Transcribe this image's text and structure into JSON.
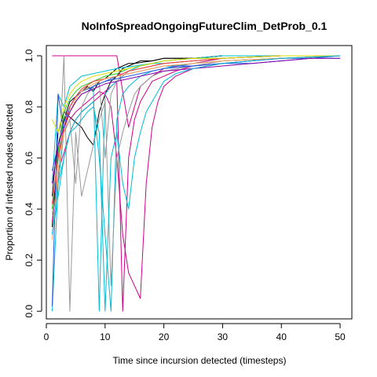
{
  "chart_data": {
    "type": "line",
    "title": "NoInfoSpreadOngoingFutureClim_DetProb_0.1",
    "xlabel": "Time since incursion detected (timesteps)",
    "ylabel": "Proportion of infested nodes detected",
    "xlim": [
      0,
      52
    ],
    "ylim": [
      -0.03,
      1.04
    ],
    "xticks": [
      0,
      10,
      20,
      30,
      40,
      50
    ],
    "yticks": [
      0.0,
      0.2,
      0.4,
      0.6,
      0.8,
      1.0
    ],
    "xtick_labels": [
      "0",
      "10",
      "20",
      "30",
      "40",
      "50"
    ],
    "ytick_labels": [
      "0.0",
      "0.2",
      "0.4",
      "0.6",
      "0.8",
      "1.0"
    ],
    "grid": false,
    "series": [
      {
        "color": "#000000",
        "x": [
          1,
          2,
          3,
          4,
          5,
          6,
          7,
          8,
          9,
          10,
          11,
          12,
          13,
          14,
          15,
          16,
          18,
          20,
          22,
          25,
          30,
          35,
          40,
          45,
          50
        ],
        "y": [
          0.33,
          0.65,
          0.75,
          0.82,
          0.84,
          0.86,
          0.88,
          0.86,
          0.9,
          0.91,
          0.93,
          0.95,
          0.96,
          0.97,
          0.97,
          0.98,
          0.98,
          0.99,
          0.99,
          0.99,
          1.0,
          1.0,
          1.0,
          1.0,
          1.0
        ]
      },
      {
        "color": "#000000",
        "x": [
          1,
          2,
          3,
          4,
          5,
          6,
          7,
          8,
          9,
          10,
          11,
          12,
          13,
          15,
          18,
          20,
          25,
          30,
          40,
          50
        ],
        "y": [
          0.45,
          0.7,
          0.78,
          0.76,
          0.74,
          0.72,
          0.68,
          0.65,
          0.78,
          0.85,
          0.9,
          0.92,
          0.95,
          0.97,
          0.98,
          0.99,
          0.99,
          1.0,
          1.0,
          1.0
        ]
      },
      {
        "color": "#cc0088",
        "x": [
          1,
          2,
          3,
          4,
          5,
          6,
          7,
          8,
          9,
          10,
          11,
          12,
          13,
          14,
          15,
          16,
          17,
          18,
          20,
          22,
          25,
          30,
          40,
          50
        ],
        "y": [
          0.35,
          0.55,
          0.62,
          0.7,
          0.75,
          0.78,
          0.8,
          0.82,
          0.84,
          0.86,
          0.88,
          0.9,
          0.0,
          0.6,
          0.75,
          0.82,
          0.86,
          0.9,
          0.92,
          0.94,
          0.96,
          0.98,
          0.99,
          1.0
        ]
      },
      {
        "color": "#cc0088",
        "x": [
          1,
          2,
          3,
          4,
          5,
          6,
          7,
          8,
          9,
          10,
          11,
          12,
          14,
          16,
          18,
          20,
          25,
          30,
          40,
          50
        ],
        "y": [
          1.0,
          1.0,
          1.0,
          1.0,
          1.0,
          1.0,
          1.0,
          1.0,
          1.0,
          1.0,
          1.0,
          1.0,
          0.72,
          0.88,
          0.92,
          0.95,
          0.97,
          0.99,
          1.0,
          1.0
        ]
      },
      {
        "color": "#cc0088",
        "x": [
          1,
          2,
          3,
          4,
          5,
          6,
          7,
          8,
          9,
          10,
          11,
          12,
          13,
          14,
          15,
          16,
          17,
          18,
          19,
          20,
          22,
          25,
          30,
          40,
          50
        ],
        "y": [
          0.4,
          0.6,
          0.7,
          0.75,
          0.78,
          0.8,
          0.82,
          0.84,
          0.86,
          0.85,
          0.8,
          0.6,
          0.3,
          0.15,
          0.1,
          0.05,
          0.5,
          0.72,
          0.82,
          0.88,
          0.92,
          0.95,
          0.97,
          0.99,
          1.0
        ]
      },
      {
        "color": "#00bcd4",
        "x": [
          1,
          2,
          3,
          4,
          5,
          6,
          7,
          8,
          9,
          10,
          11,
          12,
          13,
          14,
          15,
          16,
          18,
          20,
          25,
          30,
          40,
          50
        ],
        "y": [
          0.0,
          0.5,
          0.7,
          0.8,
          0.84,
          0.86,
          0.87,
          0.88,
          0.0,
          0.85,
          0.88,
          0.9,
          0.92,
          0.94,
          0.95,
          0.96,
          0.97,
          0.98,
          0.99,
          1.0,
          1.0,
          1.0
        ]
      },
      {
        "color": "#00bcd4",
        "x": [
          1,
          2,
          3,
          4,
          5,
          6,
          7,
          8,
          9,
          10,
          11,
          12,
          13,
          14,
          15,
          16,
          18,
          20,
          22,
          25,
          30,
          40,
          50
        ],
        "y": [
          0.3,
          0.45,
          0.6,
          0.7,
          0.75,
          0.78,
          0.8,
          0.82,
          0.6,
          0.3,
          0.0,
          0.75,
          0.85,
          0.88,
          0.9,
          0.92,
          0.94,
          0.95,
          0.96,
          0.97,
          0.98,
          0.99,
          1.0
        ]
      },
      {
        "color": "#00bcd4",
        "x": [
          1,
          2,
          3,
          4,
          5,
          6,
          8,
          10,
          12,
          15,
          18,
          20,
          25,
          30,
          40,
          50
        ],
        "y": [
          0.5,
          0.85,
          0.8,
          0.88,
          0.9,
          0.92,
          0.93,
          0.94,
          0.95,
          0.96,
          0.97,
          0.97,
          0.98,
          0.99,
          1.0,
          1.0
        ]
      },
      {
        "color": "#999999",
        "x": [
          1,
          2,
          3,
          4,
          5,
          6,
          7,
          8,
          9,
          10,
          11,
          12,
          13,
          14,
          15,
          16,
          18,
          20,
          25,
          30,
          40,
          50
        ],
        "y": [
          0.38,
          0.5,
          1.0,
          0.0,
          0.7,
          0.45,
          0.55,
          0.65,
          0.75,
          0.82,
          0.1,
          0.6,
          0.7,
          0.78,
          0.85,
          0.88,
          0.92,
          0.94,
          0.96,
          0.98,
          0.99,
          1.0
        ]
      },
      {
        "color": "#999999",
        "x": [
          1,
          2,
          3,
          4,
          5,
          6,
          7,
          8,
          9,
          10,
          11,
          12,
          14,
          16,
          18,
          20,
          25,
          30,
          40,
          50
        ],
        "y": [
          0.4,
          0.6,
          0.7,
          0.75,
          0.5,
          0.8,
          0.85,
          0.88,
          0.9,
          0.6,
          0.85,
          0.9,
          0.94,
          0.95,
          0.96,
          0.97,
          0.98,
          0.99,
          1.0,
          1.0
        ]
      },
      {
        "color": "#2255dd",
        "x": [
          1,
          2,
          3,
          4,
          5,
          6,
          7,
          8,
          9,
          10,
          12,
          14,
          16,
          18,
          20,
          25,
          30,
          35,
          40,
          45,
          50
        ],
        "y": [
          0.02,
          0.85,
          0.7,
          0.78,
          0.82,
          0.85,
          0.86,
          0.88,
          0.89,
          0.9,
          0.92,
          0.93,
          0.94,
          0.95,
          0.96,
          0.96,
          0.97,
          0.97,
          0.98,
          0.99,
          0.99
        ]
      },
      {
        "color": "#2255dd",
        "x": [
          1,
          2,
          3,
          4,
          5,
          6,
          8,
          10,
          12,
          14,
          16,
          18,
          20,
          25,
          30,
          35,
          40,
          45,
          50
        ],
        "y": [
          0.55,
          0.65,
          0.74,
          0.8,
          0.84,
          0.86,
          0.88,
          0.9,
          0.91,
          0.92,
          0.93,
          0.94,
          0.95,
          0.96,
          0.97,
          0.98,
          0.99,
          0.99,
          1.0
        ]
      },
      {
        "color": "#22cc22",
        "x": [
          1,
          2,
          3,
          4,
          5,
          6,
          8,
          10,
          12,
          14,
          16,
          18,
          20,
          25,
          30,
          40,
          50
        ],
        "y": [
          0.4,
          0.62,
          0.78,
          0.83,
          0.86,
          0.88,
          0.9,
          0.92,
          0.93,
          0.95,
          0.96,
          0.97,
          0.98,
          0.99,
          0.99,
          1.0,
          1.0
        ]
      },
      {
        "color": "#ff3333",
        "x": [
          1,
          2,
          3,
          4,
          5,
          6,
          8,
          10,
          12,
          14,
          16,
          18,
          20,
          25,
          30,
          40,
          50
        ],
        "y": [
          0.42,
          0.6,
          0.72,
          0.8,
          0.84,
          0.87,
          0.9,
          0.91,
          0.92,
          0.94,
          0.95,
          0.96,
          0.97,
          0.98,
          0.99,
          1.0,
          1.0
        ]
      },
      {
        "color": "#dddd00",
        "x": [
          1,
          2,
          3,
          4,
          5,
          6,
          8,
          10,
          12,
          14,
          16,
          18,
          20,
          25,
          30,
          40,
          50
        ],
        "y": [
          0.75,
          0.7,
          0.8,
          0.85,
          0.88,
          0.9,
          0.92,
          0.93,
          0.94,
          0.95,
          0.96,
          0.97,
          0.98,
          0.99,
          0.99,
          1.0,
          1.0
        ]
      },
      {
        "color": "#ffaa55",
        "x": [
          1,
          2,
          3,
          4,
          5,
          6,
          8,
          10,
          12,
          14,
          16,
          18,
          20,
          25,
          30,
          40,
          50
        ],
        "y": [
          0.28,
          0.55,
          0.7,
          0.78,
          0.83,
          0.86,
          0.89,
          0.91,
          0.92,
          0.93,
          0.94,
          0.95,
          0.96,
          0.97,
          0.98,
          0.99,
          1.0
        ]
      },
      {
        "color": "#8800aa",
        "x": [
          1,
          2,
          3,
          4,
          5,
          6,
          8,
          10,
          12,
          14,
          16,
          18,
          20,
          25,
          30,
          35,
          40,
          45,
          50
        ],
        "y": [
          0.5,
          0.65,
          0.72,
          0.78,
          0.82,
          0.85,
          0.87,
          0.89,
          0.9,
          0.91,
          0.92,
          0.93,
          0.94,
          0.95,
          0.96,
          0.97,
          0.98,
          0.99,
          0.99
        ]
      },
      {
        "color": "#00bcd4",
        "x": [
          1,
          2,
          3,
          4,
          5,
          6,
          7,
          8,
          9,
          10,
          11,
          12,
          13,
          14,
          15,
          16,
          17,
          18,
          19,
          20,
          22,
          25,
          30,
          40,
          50
        ],
        "y": [
          0.3,
          0.5,
          0.6,
          0.7,
          0.72,
          0.75,
          0.78,
          0.8,
          0.7,
          0.0,
          0.6,
          0.7,
          0.5,
          0.4,
          0.6,
          0.7,
          0.78,
          0.82,
          0.86,
          0.9,
          0.93,
          0.95,
          0.97,
          0.99,
          1.0
        ]
      }
    ]
  }
}
